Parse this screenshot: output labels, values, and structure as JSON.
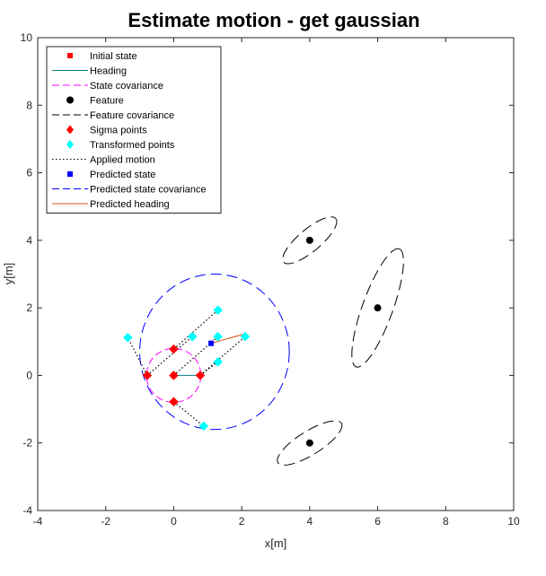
{
  "chart_data": {
    "type": "scatter",
    "title": "Estimate motion - get gaussian",
    "xlabel": "x[m]",
    "ylabel": "y[m]",
    "xlim": [
      -4,
      10
    ],
    "ylim": [
      -4,
      10
    ],
    "xticks": [
      "-4",
      "-2",
      "0",
      "2",
      "4",
      "6",
      "8",
      "10"
    ],
    "yticks": [
      "-4",
      "-2",
      "0",
      "2",
      "4",
      "6",
      "8",
      "10"
    ],
    "grid": false,
    "legend_position": "top-left",
    "legend": [
      {
        "label": "Initial state",
        "marker": "square",
        "line": "none",
        "color": "#ff0000"
      },
      {
        "label": "Heading",
        "marker": "none",
        "line": "solid",
        "color": "#008080"
      },
      {
        "label": "State covariance",
        "marker": "none",
        "line": "dashed",
        "color": "#ff00ff"
      },
      {
        "label": "Feature",
        "marker": "circle",
        "line": "none",
        "color": "#000000"
      },
      {
        "label": "Feature covariance",
        "marker": "none",
        "line": "dashed",
        "color": "#000000"
      },
      {
        "label": "Sigma points",
        "marker": "diamond",
        "line": "none",
        "color": "#ff0000"
      },
      {
        "label": "Transformed points",
        "marker": "diamond",
        "line": "none",
        "color": "#00ffff"
      },
      {
        "label": "Applied motion",
        "marker": "none",
        "line": "dotted",
        "color": "#000000"
      },
      {
        "label": "Predicted state",
        "marker": "square",
        "line": "none",
        "color": "#0000ff"
      },
      {
        "label": "Predicted state covariance",
        "marker": "none",
        "line": "dashed",
        "color": "#0000ff"
      },
      {
        "label": "Predicted heading",
        "marker": "none",
        "line": "solid",
        "color": "#d95319"
      }
    ],
    "initial_state": {
      "x": 0,
      "y": 0,
      "heading_end": [
        0.8,
        0
      ]
    },
    "state_covariance": {
      "cx": 0,
      "cy": 0,
      "rx": 0.8,
      "ry": 0.8,
      "angle": 0
    },
    "features": [
      {
        "x": 4,
        "y": 4
      },
      {
        "x": 6,
        "y": 2
      },
      {
        "x": 4,
        "y": -2
      }
    ],
    "feature_covariances": [
      {
        "cx": 4,
        "cy": 4,
        "rx": 1.0,
        "ry": 0.33,
        "angle": 40
      },
      {
        "cx": 6,
        "cy": 2,
        "rx": 1.85,
        "ry": 0.45,
        "angle": 70
      },
      {
        "cx": 4,
        "cy": -2,
        "rx": 1.1,
        "ry": 0.35,
        "angle": 32
      }
    ],
    "sigma_points": [
      {
        "x": 0,
        "y": 0
      },
      {
        "x": 0.78,
        "y": 0
      },
      {
        "x": -0.78,
        "y": 0
      },
      {
        "x": 0,
        "y": 0.78
      },
      {
        "x": 0,
        "y": -0.78
      }
    ],
    "transformed_points": [
      {
        "x": 1.3,
        "y": 1.15
      },
      {
        "x": 2.1,
        "y": 1.15
      },
      {
        "x": -1.35,
        "y": 1.12
      },
      {
        "x": 1.3,
        "y": 1.93
      },
      {
        "x": 0.88,
        "y": -1.5
      },
      {
        "x": 0.55,
        "y": 1.15
      },
      {
        "x": 1.3,
        "y": 0.4
      }
    ],
    "applied_motion": [
      {
        "from": [
          0,
          0
        ],
        "to": [
          1.3,
          1.15
        ]
      },
      {
        "from": [
          0.78,
          0
        ],
        "to": [
          2.1,
          1.15
        ]
      },
      {
        "from": [
          -0.78,
          0
        ],
        "to": [
          -1.35,
          1.12
        ]
      },
      {
        "from": [
          0,
          0.78
        ],
        "to": [
          1.3,
          1.93
        ]
      },
      {
        "from": [
          0,
          -0.78
        ],
        "to": [
          0.88,
          -1.5
        ]
      },
      {
        "from": [
          -0.78,
          0
        ],
        "to": [
          0.55,
          1.15
        ]
      },
      {
        "from": [
          0.78,
          0
        ],
        "to": [
          1.3,
          0.4
        ]
      }
    ],
    "predicted_state": {
      "x": 1.1,
      "y": 0.95
    },
    "predicted_heading": {
      "from": [
        1.1,
        0.95
      ],
      "to": [
        2.05,
        1.22
      ]
    },
    "predicted_state_covariance": {
      "cx": 1.2,
      "cy": 0.7,
      "rx": 2.2,
      "ry": 2.3,
      "angle": 0
    }
  }
}
